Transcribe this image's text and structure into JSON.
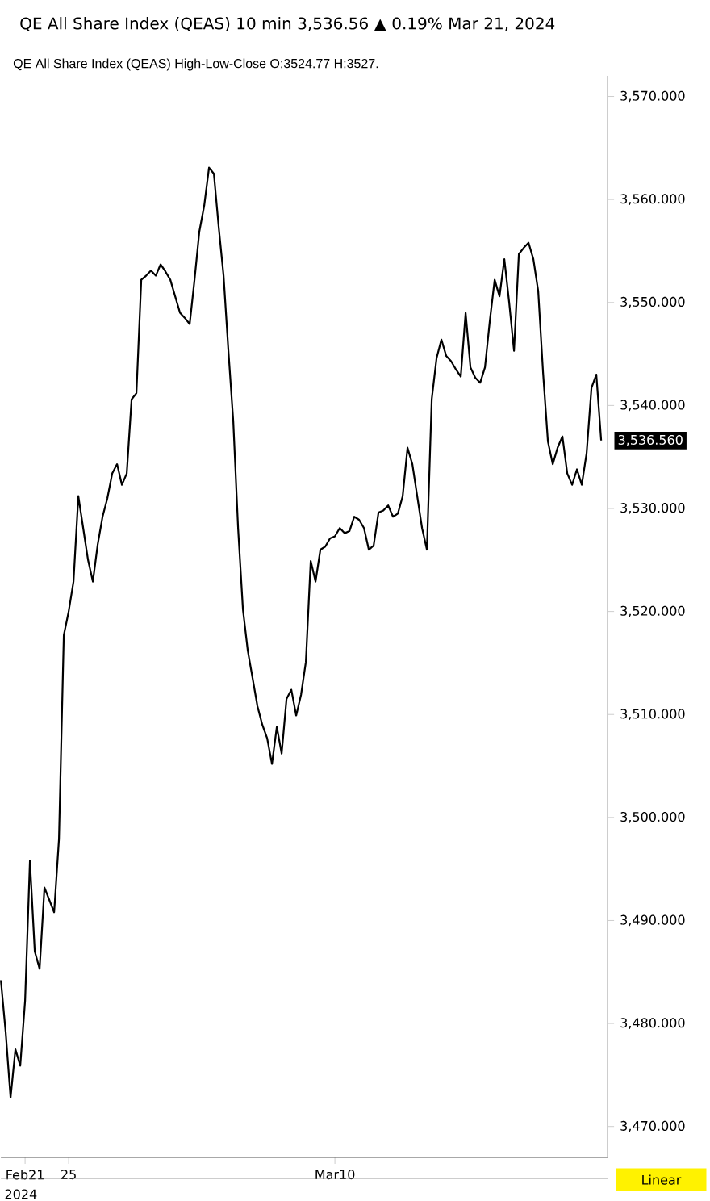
{
  "chart_data": {
    "type": "line",
    "title": "QE All Share Index  (QEAS)    10 min    3,536.56 ▲ 0.19%    Mar 21, 2024",
    "subtitle": "QE All Share Index (QEAS)  High-Low-Close    O:3524.77  H:3527.",
    "categories": [
      null,
      null,
      null,
      null,
      null,
      "Feb21",
      null,
      null,
      null,
      null,
      null,
      null,
      null,
      null,
      "25",
      null,
      null,
      null,
      null,
      null,
      null,
      null,
      null,
      null,
      null,
      null,
      null,
      null,
      null,
      null,
      null,
      null,
      null,
      null,
      null,
      null,
      null,
      null,
      null,
      null,
      null,
      null,
      null,
      null,
      null,
      null,
      null,
      null,
      null,
      null,
      null,
      null,
      null,
      null,
      null,
      null,
      null,
      null,
      null,
      null,
      null,
      null,
      null,
      null,
      null,
      null,
      null,
      null,
      null,
      "Mar10",
      null,
      null,
      null,
      null,
      null,
      null,
      null,
      null,
      null,
      null,
      null,
      null,
      null,
      null,
      null,
      null,
      null,
      null,
      null,
      null,
      null,
      null,
      null,
      null,
      null,
      null,
      null,
      null,
      null,
      null,
      null,
      null,
      null,
      null,
      null,
      null,
      null,
      null,
      null,
      null,
      null,
      null,
      null,
      null,
      null,
      null,
      null,
      null,
      null,
      null,
      null,
      null,
      null,
      null,
      null
    ],
    "series": [
      {
        "color": "#000000",
        "values": [
          3484.2,
          3479.1,
          3472.8,
          3477.5,
          3475.9,
          3482.2,
          3495.8,
          3487.0,
          3485.3,
          3493.2,
          3492.0,
          3490.8,
          3497.9,
          3517.7,
          3520.0,
          3522.9,
          3531.2,
          3528.1,
          3525.0,
          3522.9,
          3526.5,
          3529.2,
          3531.0,
          3533.4,
          3534.3,
          3532.3,
          3533.4,
          3540.6,
          3541.2,
          3552.2,
          3552.6,
          3553.1,
          3552.6,
          3553.7,
          3553.0,
          3552.2,
          3550.6,
          3549.0,
          3548.5,
          3547.9,
          3552.2,
          3556.9,
          3559.4,
          3563.1,
          3562.5,
          3557.3,
          3552.6,
          3545.3,
          3538.5,
          3528.1,
          3520.2,
          3516.2,
          3513.5,
          3510.8,
          3509.0,
          3507.7,
          3505.2,
          3508.8,
          3506.2,
          3511.5,
          3512.4,
          3509.9,
          3511.9,
          3515.1,
          3524.9,
          3522.9,
          3526.0,
          3526.3,
          3527.1,
          3527.3,
          3528.1,
          3527.6,
          3527.8,
          3529.2,
          3528.9,
          3528.1,
          3526.0,
          3526.4,
          3529.6,
          3529.8,
          3530.3,
          3529.2,
          3529.5,
          3531.2,
          3535.9,
          3534.3,
          3531.2,
          3528.1,
          3526.0,
          3540.6,
          3544.6,
          3546.4,
          3544.8,
          3544.3,
          3543.5,
          3542.8,
          3549.0,
          3543.7,
          3542.7,
          3542.2,
          3543.7,
          3548.2,
          3552.2,
          3550.6,
          3554.2,
          3550.0,
          3545.3,
          3554.7,
          3555.3,
          3555.8,
          3554.2,
          3551.1,
          3543.2,
          3536.5,
          3534.3,
          3535.9,
          3537.0,
          3533.4,
          3532.3,
          3533.8,
          3532.3,
          3535.4,
          3541.7,
          3543.0,
          3536.6
        ]
      }
    ],
    "ylim": [
      3467,
      3572
    ],
    "yticks": [
      {
        "value": 3470,
        "label": "3,470.000"
      },
      {
        "value": 3480,
        "label": "3,480.000"
      },
      {
        "value": 3490,
        "label": "3,490.000"
      },
      {
        "value": 3500,
        "label": "3,500.000"
      },
      {
        "value": 3510,
        "label": "3,510.000"
      },
      {
        "value": 3520,
        "label": "3,520.000"
      },
      {
        "value": 3530,
        "label": "3,530.000"
      },
      {
        "value": 3540,
        "label": "3,540.000"
      },
      {
        "value": 3550,
        "label": "3,550.000"
      },
      {
        "value": 3560,
        "label": "3,560.000"
      },
      {
        "value": 3570,
        "label": "3,570.000"
      }
    ],
    "annotations": [
      "2024",
      "Linear",
      "3,536.560"
    ],
    "grid": false,
    "marker": "none",
    "line_style": "solid"
  }
}
